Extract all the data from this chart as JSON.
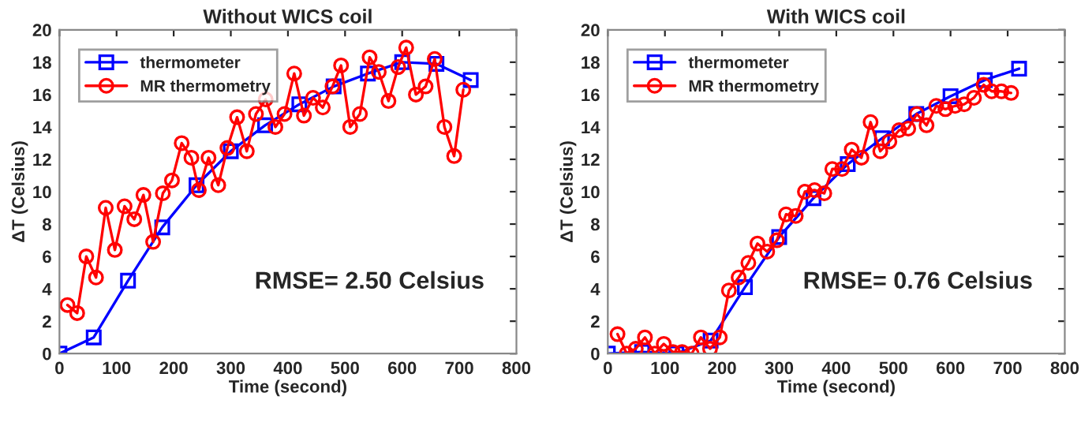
{
  "chart_data": [
    {
      "type": "line",
      "title": "Without WICS coil",
      "xlabel": "Time (second)",
      "ylabel": "ΔT (Celsius)",
      "xlim": [
        0,
        800
      ],
      "ylim": [
        0,
        20
      ],
      "xticks": [
        0,
        100,
        200,
        300,
        400,
        500,
        600,
        700,
        800
      ],
      "yticks": [
        0,
        2,
        4,
        6,
        8,
        10,
        12,
        14,
        16,
        18,
        20
      ],
      "grid": false,
      "legend": "top left",
      "annotations": [
        "RMSE= 2.50 Celsius"
      ],
      "series": [
        {
          "name": "thermometer",
          "color": "#0000ff",
          "marker": "square",
          "x": [
            0,
            60,
            120,
            180,
            240,
            300,
            360,
            420,
            480,
            540,
            600,
            660,
            720
          ],
          "values": [
            0,
            1,
            4.5,
            7.8,
            10.4,
            12.5,
            14.1,
            15.4,
            16.5,
            17.3,
            18.0,
            17.9,
            16.9
          ]
        },
        {
          "name": "MR thermometry",
          "color": "#ff0000",
          "marker": "circle",
          "x": [
            14,
            31,
            47,
            64,
            81,
            97,
            114,
            131,
            147,
            164,
            181,
            197,
            214,
            231,
            244,
            261,
            278,
            294,
            311,
            328,
            344,
            361,
            378,
            394,
            411,
            428,
            444,
            461,
            478,
            493,
            509,
            526,
            543,
            559,
            576,
            593,
            607,
            624,
            641,
            657,
            674,
            691,
            707
          ],
          "values": [
            3.0,
            2.5,
            6.0,
            4.7,
            9.0,
            6.4,
            9.1,
            8.3,
            9.8,
            6.9,
            9.9,
            10.7,
            13.0,
            12.1,
            10.1,
            12.1,
            10.4,
            12.7,
            14.6,
            12.5,
            14.8,
            15.7,
            14.0,
            14.8,
            17.3,
            14.7,
            15.8,
            15.2,
            16.5,
            17.8,
            14.0,
            14.8,
            18.3,
            17.4,
            15.6,
            17.7,
            18.9,
            16.0,
            16.5,
            18.2,
            14.0,
            12.2,
            16.3
          ]
        }
      ]
    },
    {
      "type": "line",
      "title": "With WICS coil",
      "xlabel": "Time (second)",
      "ylabel": "ΔT (Celsius)",
      "xlim": [
        0,
        800
      ],
      "ylim": [
        0,
        20
      ],
      "xticks": [
        0,
        100,
        200,
        300,
        400,
        500,
        600,
        700,
        800
      ],
      "yticks": [
        0,
        2,
        4,
        6,
        8,
        10,
        12,
        14,
        16,
        18,
        20
      ],
      "grid": false,
      "legend": "top left",
      "annotations": [
        "RMSE= 0.76 Celsius"
      ],
      "series": [
        {
          "name": "thermometer",
          "color": "#0000ff",
          "marker": "square",
          "x": [
            0,
            60,
            120,
            180,
            240,
            300,
            360,
            420,
            480,
            540,
            600,
            660,
            720
          ],
          "values": [
            0,
            0.1,
            0.0,
            0.8,
            4.1,
            7.2,
            9.6,
            11.7,
            13.3,
            14.8,
            15.9,
            16.9,
            17.6
          ]
        },
        {
          "name": "MR thermometry",
          "color": "#ff0000",
          "marker": "circle",
          "x": [
            17,
            33,
            49,
            65,
            82,
            98,
            114,
            130,
            147,
            163,
            179,
            196,
            212,
            229,
            246,
            262,
            279,
            296,
            312,
            329,
            345,
            362,
            379,
            393,
            410,
            427,
            444,
            460,
            477,
            493,
            510,
            526,
            541,
            558,
            575,
            591,
            608,
            624,
            641,
            658,
            672,
            689,
            706
          ],
          "values": [
            1.2,
            0.0,
            0.3,
            1.0,
            0.0,
            0.6,
            0.1,
            0.1,
            0.0,
            1.0,
            0.3,
            1.0,
            3.9,
            4.7,
            5.6,
            6.8,
            6.3,
            7.0,
            8.6,
            8.5,
            10.0,
            10.1,
            9.9,
            11.4,
            11.4,
            12.6,
            12.1,
            14.3,
            12.5,
            13.1,
            13.8,
            13.9,
            14.8,
            14.1,
            15.3,
            15.1,
            15.3,
            15.4,
            15.8,
            16.6,
            16.2,
            16.2,
            16.1
          ]
        }
      ]
    }
  ]
}
